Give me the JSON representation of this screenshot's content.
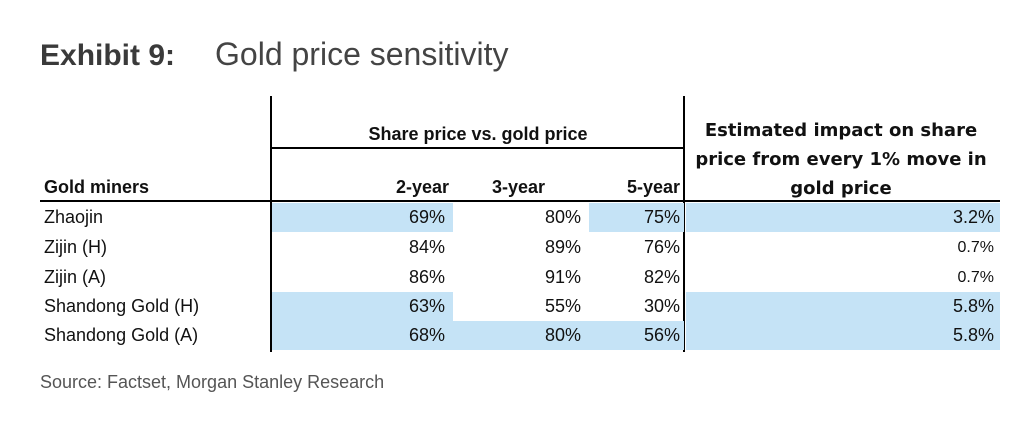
{
  "exhibit": {
    "number": "Exhibit 9:",
    "title": "Gold price sensitivity"
  },
  "table": {
    "group_header": "Share price vs. gold price",
    "impact_header": "Estimated impact on share price from every 1% move in gold price",
    "col_name": "Gold miners",
    "col_2y": "2-year",
    "col_3y": "3-year",
    "col_5y": "5-year",
    "rows": [
      {
        "name": "Zhaojin",
        "y2": "69%",
        "y3": "80%",
        "y5": "75%",
        "impact": "3.2%"
      },
      {
        "name": "Zijin (H)",
        "y2": "84%",
        "y3": "89%",
        "y5": "76%",
        "impact": "0.7%"
      },
      {
        "name": "Zijin (A)",
        "y2": "86%",
        "y3": "91%",
        "y5": "82%",
        "impact": "0.7%"
      },
      {
        "name": "Shandong Gold (H)",
        "y2": "63%",
        "y3": "55%",
        "y5": "30%",
        "impact": "5.8%"
      },
      {
        "name": "Shandong Gold (A)",
        "y2": "68%",
        "y3": "80%",
        "y5": "56%",
        "impact": "5.8%"
      }
    ],
    "highlight_color": "#c5e3f6"
  },
  "source": "Source: Factset, Morgan Stanley Research"
}
